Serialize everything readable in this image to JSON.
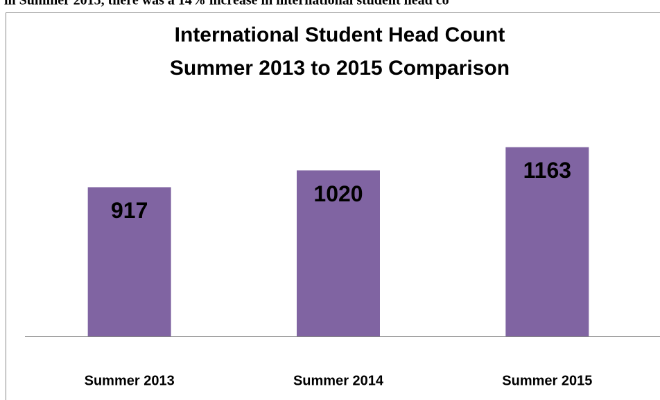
{
  "note": "in Summer 2015, there was a 14% increase in international student head co",
  "chart_data": {
    "type": "bar",
    "title": "International Student Head Count",
    "subtitle": "Summer 2013 to 2015 Comparison",
    "categories": [
      "Summer 2013",
      "Summer 2014",
      "Summer 2015"
    ],
    "values": [
      917,
      1020,
      1163
    ],
    "color": "#8064a2",
    "ylim": [
      0,
      1400
    ]
  }
}
